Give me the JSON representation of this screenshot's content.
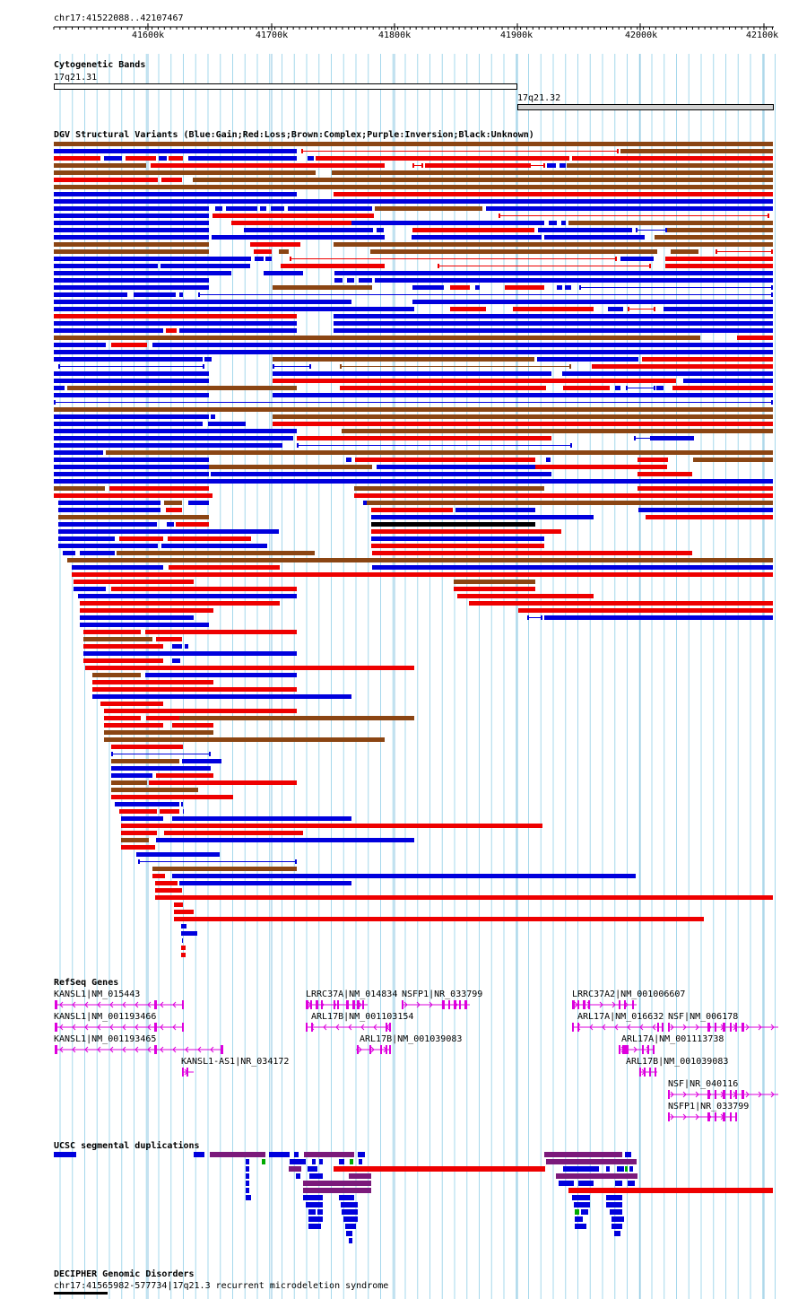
{
  "ruler": {
    "range_label": "chr17:41522088..42107467",
    "ticks": [
      "41600k",
      "41700k",
      "41800k",
      "41900k",
      "42000k",
      "42100k"
    ]
  },
  "cytobands": {
    "title": "Cytogenetic Bands",
    "bands": [
      {
        "name": "17q21.31",
        "color": "#ffffff"
      },
      {
        "name": "17q21.32",
        "color": "#d2d2d2"
      }
    ]
  },
  "dgv": {
    "title": "DGV Structural Variants (Blue:Gain;Red:Loss;Brown:Complex;Purple:Inversion;Black:Unknown)",
    "colors": {
      "blue": "#0000dd",
      "red": "#ee0000",
      "brown": "#8b4513",
      "black": "#000000"
    }
  },
  "refseq": {
    "title": "RefSeq Genes",
    "color": "#dd00dd",
    "genes": [
      "KANSL1|NM_015443",
      "KANSL1|NM_001193466",
      "KANSL1|NM_001193465",
      "KANSL1-AS1|NR_034172",
      "LRRC37A|NM_014834",
      "NSFP1|NR_033799",
      "ARL17B|NM_001103154",
      "ARL17B|NM_001039083",
      "LRRC37A2|NM_001006607",
      "ARL17A|NM_016632",
      "NSF|NM_006178",
      "ARL17A|NM_001113738",
      "ARL17B|NM_001039083",
      "NSF|NR_040116",
      "NSFP1|NR_033799"
    ]
  },
  "segdups": {
    "title": "UCSC segmental duplications",
    "colors": {
      "blue": "#0000dd",
      "purple": "#7b1a7b",
      "red": "#ee0000",
      "green": "#00aa00"
    }
  },
  "decipher": {
    "title": "DECIPHER Genomic Disorders",
    "items": [
      "chr17:41565982-577734|17q21.3 recurrent microdeletion syndrome"
    ]
  }
}
